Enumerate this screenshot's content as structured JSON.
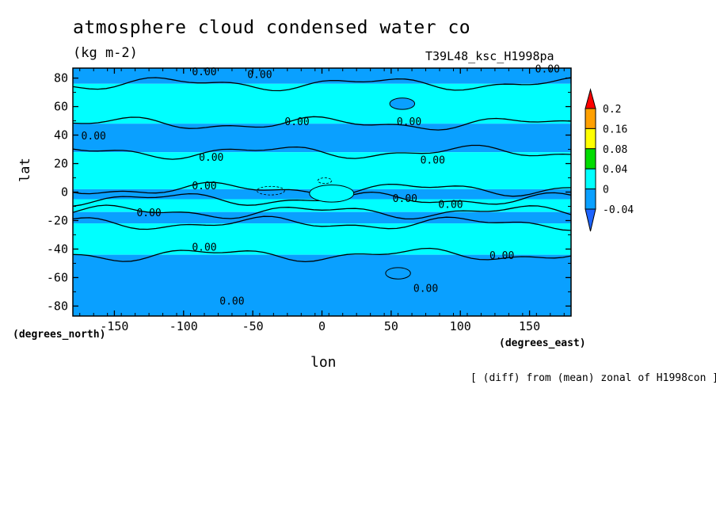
{
  "chart_data": {
    "type": "heatmap",
    "title": "atmosphere cloud condensed water co",
    "units": "(kg m-2)",
    "run_label": "T39L48_ksc_H1998pa",
    "xlabel": "lon",
    "ylabel": "lat",
    "x_unit": "(degrees_east)",
    "y_unit": "(degrees_north)",
    "footnote": "[ (diff) from (mean) zonal of H1998con ]",
    "xlim": [
      -180,
      180
    ],
    "ylim": [
      -87,
      87
    ],
    "x_ticks": [
      -150,
      -100,
      -50,
      0,
      50,
      100,
      150
    ],
    "y_ticks": [
      80,
      60,
      40,
      20,
      0,
      -20,
      -40,
      -60,
      -80
    ],
    "x_tick_labels": [
      "-150",
      "-100",
      "-50",
      "0",
      "50",
      "100",
      "150"
    ],
    "y_tick_labels": [
      "80",
      "60",
      "40",
      "20",
      "0",
      "-20",
      "-40",
      "-60",
      "-80"
    ],
    "colorbar": {
      "levels": [
        -0.04,
        0,
        0.04,
        0.08,
        0.16,
        0.2
      ],
      "labels": [
        "-0.04",
        "0",
        "0.04",
        "0.08",
        "0.16",
        "0.2"
      ],
      "colors": [
        "#1e64ff",
        "#0aa0ff",
        "#00ffff",
        "#00dc00",
        "#ffff00",
        "#ffa000",
        "#ff0000"
      ]
    },
    "field_colors": {
      "negative": "#0aa0ff",
      "near_zero": "#00ffff"
    },
    "contour_labels": [
      "0.00",
      "0.00",
      "0.00",
      "0.00",
      "0.00",
      "0.00",
      "0.00",
      "0.00",
      "0.00",
      "0.00",
      "0.00",
      "0.00",
      "0.00",
      "0.00",
      "0.00",
      "0.00"
    ],
    "bands": [
      {
        "lat_top": 87,
        "lat_bottom": 76,
        "sign": "negative"
      },
      {
        "lat_top": 76,
        "lat_bottom": 48,
        "sign": "near_zero"
      },
      {
        "lat_top": 48,
        "lat_bottom": 28,
        "sign": "negative"
      },
      {
        "lat_top": 28,
        "lat_bottom": 2,
        "sign": "near_zero"
      },
      {
        "lat_top": 2,
        "lat_bottom": -5,
        "sign": "negative"
      },
      {
        "lat_top": -5,
        "lat_bottom": -14,
        "sign": "near_zero"
      },
      {
        "lat_top": -14,
        "lat_bottom": -22,
        "sign": "negative"
      },
      {
        "lat_top": -22,
        "lat_bottom": -44,
        "sign": "near_zero"
      },
      {
        "lat_top": -44,
        "lat_bottom": -87,
        "sign": "negative"
      }
    ]
  }
}
